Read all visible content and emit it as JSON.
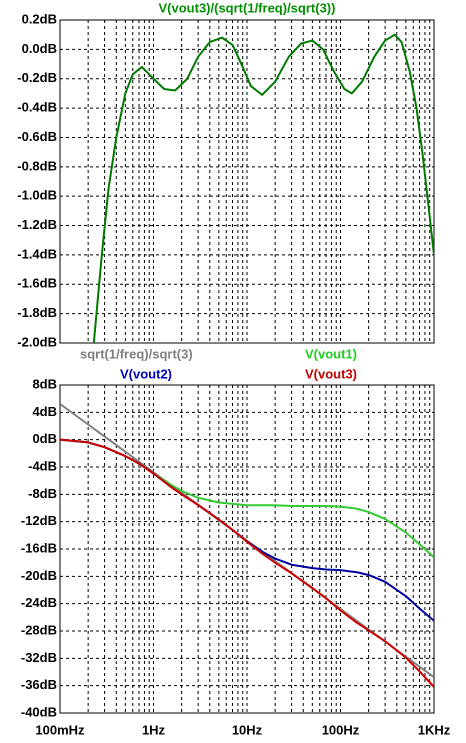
{
  "chart_data": [
    {
      "type": "line",
      "x_scale": "log",
      "grid": true,
      "minor_grid": true,
      "xlim": [
        0.1,
        1000
      ],
      "xticks": [
        0.1,
        1,
        10,
        100,
        1000
      ],
      "ylim": [
        -2.0,
        0.2
      ],
      "yticks": [
        {
          "value": -2.0,
          "label": "-2.0dB"
        },
        {
          "value": -1.8,
          "label": "-1.8dB"
        },
        {
          "value": -1.6,
          "label": "-1.6dB"
        },
        {
          "value": -1.4,
          "label": "-1.4dB"
        },
        {
          "value": -1.2,
          "label": "-1.2dB"
        },
        {
          "value": -1.0,
          "label": "-1.0dB"
        },
        {
          "value": -0.8,
          "label": "-0.8dB"
        },
        {
          "value": -0.6,
          "label": "-0.6dB"
        },
        {
          "value": -0.4,
          "label": "-0.4dB"
        },
        {
          "value": -0.2,
          "label": "-0.2dB"
        },
        {
          "value": 0.0,
          "label": "0.0dB"
        },
        {
          "value": 0.2,
          "label": "0.2dB"
        }
      ],
      "x": [
        0.23,
        0.28,
        0.33,
        0.4,
        0.5,
        0.6,
        0.75,
        1.0,
        1.3,
        1.7,
        2.3,
        3,
        4,
        5.4,
        7,
        9,
        11,
        14.5,
        20,
        28,
        38,
        50,
        65,
        85,
        110,
        132,
        170,
        230,
        300,
        380,
        450,
        550,
        650,
        750,
        850,
        1000
      ],
      "series": [
        {
          "name": "V(vout3)/(sqrt(1/freq)/sqrt(3))",
          "color": "#007a00",
          "label_color": "#009000",
          "values": [
            -2.0,
            -1.4,
            -0.95,
            -0.6,
            -0.3,
            -0.17,
            -0.12,
            -0.2,
            -0.27,
            -0.28,
            -0.2,
            -0.05,
            0.05,
            0.08,
            0.03,
            -0.12,
            -0.25,
            -0.31,
            -0.22,
            -0.05,
            0.04,
            0.06,
            0.0,
            -0.15,
            -0.27,
            -0.3,
            -0.22,
            -0.05,
            0.06,
            0.1,
            0.05,
            -0.15,
            -0.4,
            -0.7,
            -1.0,
            -1.4
          ]
        }
      ]
    },
    {
      "type": "line",
      "x_scale": "log",
      "grid": true,
      "minor_grid": true,
      "xlim": [
        0.1,
        1000
      ],
      "xticks": [
        {
          "value": 0.1,
          "label": "100mHz"
        },
        {
          "value": 1,
          "label": "1Hz"
        },
        {
          "value": 10,
          "label": "10Hz"
        },
        {
          "value": 100,
          "label": "100Hz"
        },
        {
          "value": 1000,
          "label": "1KHz"
        }
      ],
      "ylim": [
        -40,
        8
      ],
      "yticks": [
        {
          "value": -40,
          "label": "-40dB"
        },
        {
          "value": -36,
          "label": "-36dB"
        },
        {
          "value": -32,
          "label": "-32dB"
        },
        {
          "value": -28,
          "label": "-28dB"
        },
        {
          "value": -24,
          "label": "-24dB"
        },
        {
          "value": -20,
          "label": "-20dB"
        },
        {
          "value": -16,
          "label": "-16dB"
        },
        {
          "value": -12,
          "label": "-12dB"
        },
        {
          "value": -8,
          "label": "-8dB"
        },
        {
          "value": -4,
          "label": "-4dB"
        },
        {
          "value": 0,
          "label": "0dB"
        },
        {
          "value": 4,
          "label": "4dB"
        },
        {
          "value": 8,
          "label": "8dB"
        }
      ],
      "x": [
        0.1,
        0.2,
        0.3,
        0.5,
        0.7,
        1,
        1.5,
        2,
        3,
        5,
        7,
        10,
        15,
        20,
        30,
        50,
        70,
        100,
        150,
        200,
        300,
        500,
        700,
        1000
      ],
      "series": [
        {
          "name": "sqrt(1/freq)/sqrt(3)",
          "color": "#808080",
          "label_color": "#808080",
          "values": [
            5.23,
            2.22,
            0.46,
            -1.76,
            -3.22,
            -4.77,
            -6.53,
            -7.78,
            -9.54,
            -11.76,
            -13.22,
            -14.77,
            -16.53,
            -17.78,
            -19.54,
            -21.76,
            -23.22,
            -24.77,
            -26.53,
            -27.78,
            -29.54,
            -31.76,
            -33.22,
            -34.77
          ]
        },
        {
          "name": "V(vout1)",
          "color": "#33cc33",
          "label_color": "#22cc22",
          "values": [
            0,
            -0.4,
            -1.1,
            -2.4,
            -3.5,
            -4.95,
            -6.5,
            -7.5,
            -8.5,
            -9.2,
            -9.4,
            -9.6,
            -9.6,
            -9.6,
            -9.7,
            -9.7,
            -9.7,
            -9.8,
            -10.1,
            -10.6,
            -11.6,
            -13.6,
            -15.3,
            -17.2
          ]
        },
        {
          "name": "V(vout2)",
          "color": "#0000a0",
          "label_color": "#0000c0",
          "values": [
            0,
            -0.4,
            -1.1,
            -2.4,
            -3.5,
            -4.95,
            -6.8,
            -8.0,
            -9.55,
            -11.7,
            -13.2,
            -14.9,
            -16.5,
            -17.4,
            -18.3,
            -18.8,
            -19.0,
            -19.1,
            -19.4,
            -19.8,
            -20.8,
            -22.9,
            -24.7,
            -26.5
          ]
        },
        {
          "name": "V(vout3)",
          "color": "#d00000",
          "label_color": "#c00000",
          "values": [
            0,
            -0.4,
            -1.1,
            -2.4,
            -3.5,
            -4.95,
            -6.8,
            -8.0,
            -9.55,
            -11.7,
            -13.2,
            -14.95,
            -16.8,
            -18.0,
            -19.55,
            -21.7,
            -23.2,
            -25.0,
            -26.8,
            -27.9,
            -29.5,
            -31.9,
            -33.9,
            -36.2
          ]
        }
      ]
    }
  ]
}
